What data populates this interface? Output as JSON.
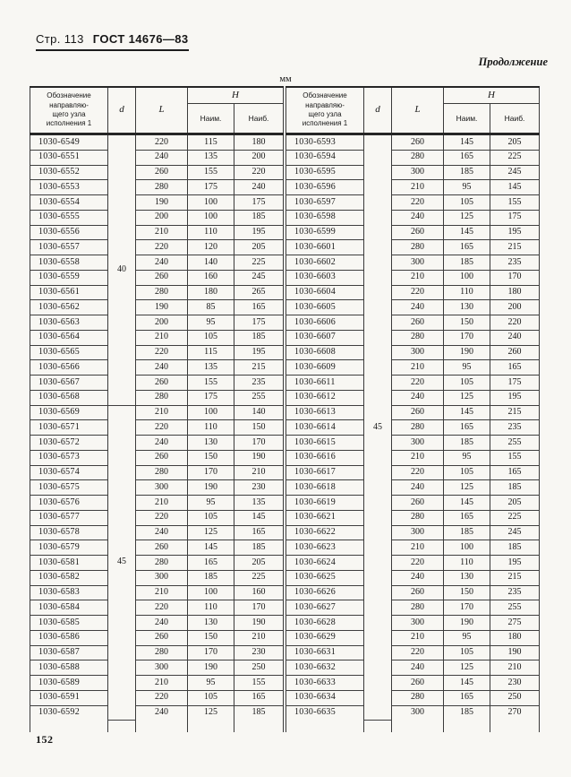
{
  "page": {
    "header_page_label": "Стр. 113",
    "header_doc_label": "ГОСТ 14676—83",
    "continuation_label": "Продолжение",
    "units_label": "мм",
    "page_number": "152"
  },
  "table": {
    "headers": {
      "designation": "Обозначение\nнаправляю-\nщего узла\nисполнения 1",
      "d": "d",
      "L": "L",
      "H": "H",
      "h_min": "Наим.",
      "h_max": "Наиб."
    },
    "left_half": {
      "d_groups": [
        {
          "d": "40",
          "row_count": 18
        },
        {
          "d": "45",
          "row_count": 21
        }
      ],
      "rows": [
        [
          "1030-6549",
          "220",
          "115",
          "180"
        ],
        [
          "1030-6551",
          "240",
          "135",
          "200"
        ],
        [
          "1030-6552",
          "260",
          "155",
          "220"
        ],
        [
          "1030-6553",
          "280",
          "175",
          "240"
        ],
        [
          "1030-6554",
          "190",
          "100",
          "175"
        ],
        [
          "1030-6555",
          "200",
          "100",
          "185"
        ],
        [
          "1030-6556",
          "210",
          "110",
          "195"
        ],
        [
          "1030-6557",
          "220",
          "120",
          "205"
        ],
        [
          "1030-6558",
          "240",
          "140",
          "225"
        ],
        [
          "1030-6559",
          "260",
          "160",
          "245"
        ],
        [
          "1030-6561",
          "280",
          "180",
          "265"
        ],
        [
          "1030-6562",
          "190",
          "85",
          "165"
        ],
        [
          "1030-6563",
          "200",
          "95",
          "175"
        ],
        [
          "1030-6564",
          "210",
          "105",
          "185"
        ],
        [
          "1030-6565",
          "220",
          "115",
          "195"
        ],
        [
          "1030-6566",
          "240",
          "135",
          "215"
        ],
        [
          "1030-6567",
          "260",
          "155",
          "235"
        ],
        [
          "1030-6568",
          "280",
          "175",
          "255"
        ],
        [
          "1030-6569",
          "210",
          "100",
          "140"
        ],
        [
          "1030-6571",
          "220",
          "110",
          "150"
        ],
        [
          "1030-6572",
          "240",
          "130",
          "170"
        ],
        [
          "1030-6573",
          "260",
          "150",
          "190"
        ],
        [
          "1030-6574",
          "280",
          "170",
          "210"
        ],
        [
          "1030-6575",
          "300",
          "190",
          "230"
        ],
        [
          "1030-6576",
          "210",
          "95",
          "135"
        ],
        [
          "1030-6577",
          "220",
          "105",
          "145"
        ],
        [
          "1030-6578",
          "240",
          "125",
          "165"
        ],
        [
          "1030-6579",
          "260",
          "145",
          "185"
        ],
        [
          "1030-6581",
          "280",
          "165",
          "205"
        ],
        [
          "1030-6582",
          "300",
          "185",
          "225"
        ],
        [
          "1030-6583",
          "210",
          "100",
          "160"
        ],
        [
          "1030-6584",
          "220",
          "110",
          "170"
        ],
        [
          "1030-6585",
          "240",
          "130",
          "190"
        ],
        [
          "1030-6586",
          "260",
          "150",
          "210"
        ],
        [
          "1030-6587",
          "280",
          "170",
          "230"
        ],
        [
          "1030-6588",
          "300",
          "190",
          "250"
        ],
        [
          "1030-6589",
          "210",
          "95",
          "155"
        ],
        [
          "1030-6591",
          "220",
          "105",
          "165"
        ],
        [
          "1030-6592",
          "240",
          "125",
          "185"
        ]
      ]
    },
    "right_half": {
      "d_groups": [
        {
          "d": "45",
          "row_count": 39
        }
      ],
      "rows": [
        [
          "1030-6593",
          "260",
          "145",
          "205"
        ],
        [
          "1030-6594",
          "280",
          "165",
          "225"
        ],
        [
          "1030-6595",
          "300",
          "185",
          "245"
        ],
        [
          "1030-6596",
          "210",
          "95",
          "145"
        ],
        [
          "1030-6597",
          "220",
          "105",
          "155"
        ],
        [
          "1030-6598",
          "240",
          "125",
          "175"
        ],
        [
          "1030-6599",
          "260",
          "145",
          "195"
        ],
        [
          "1030-6601",
          "280",
          "165",
          "215"
        ],
        [
          "1030-6602",
          "300",
          "185",
          "235"
        ],
        [
          "1030-6603",
          "210",
          "100",
          "170"
        ],
        [
          "1030-6604",
          "220",
          "110",
          "180"
        ],
        [
          "1030-6605",
          "240",
          "130",
          "200"
        ],
        [
          "1030-6606",
          "260",
          "150",
          "220"
        ],
        [
          "1030-6607",
          "280",
          "170",
          "240"
        ],
        [
          "1030-6608",
          "300",
          "190",
          "260"
        ],
        [
          "1030-6609",
          "210",
          "95",
          "165"
        ],
        [
          "1030-6611",
          "220",
          "105",
          "175"
        ],
        [
          "1030-6612",
          "240",
          "125",
          "195"
        ],
        [
          "1030-6613",
          "260",
          "145",
          "215"
        ],
        [
          "1030-6614",
          "280",
          "165",
          "235"
        ],
        [
          "1030-6615",
          "300",
          "185",
          "255"
        ],
        [
          "1030-6616",
          "210",
          "95",
          "155"
        ],
        [
          "1030-6617",
          "220",
          "105",
          "165"
        ],
        [
          "1030-6618",
          "240",
          "125",
          "185"
        ],
        [
          "1030-6619",
          "260",
          "145",
          "205"
        ],
        [
          "1030-6621",
          "280",
          "165",
          "225"
        ],
        [
          "1030-6622",
          "300",
          "185",
          "245"
        ],
        [
          "1030-6623",
          "210",
          "100",
          "185"
        ],
        [
          "1030-6624",
          "220",
          "110",
          "195"
        ],
        [
          "1030-6625",
          "240",
          "130",
          "215"
        ],
        [
          "1030-6626",
          "260",
          "150",
          "235"
        ],
        [
          "1030-6627",
          "280",
          "170",
          "255"
        ],
        [
          "1030-6628",
          "300",
          "190",
          "275"
        ],
        [
          "1030-6629",
          "210",
          "95",
          "180"
        ],
        [
          "1030-6631",
          "220",
          "105",
          "190"
        ],
        [
          "1030-6632",
          "240",
          "125",
          "210"
        ],
        [
          "1030-6633",
          "260",
          "145",
          "230"
        ],
        [
          "1030-6634",
          "280",
          "165",
          "250"
        ],
        [
          "1030-6635",
          "300",
          "185",
          "270"
        ]
      ]
    }
  }
}
